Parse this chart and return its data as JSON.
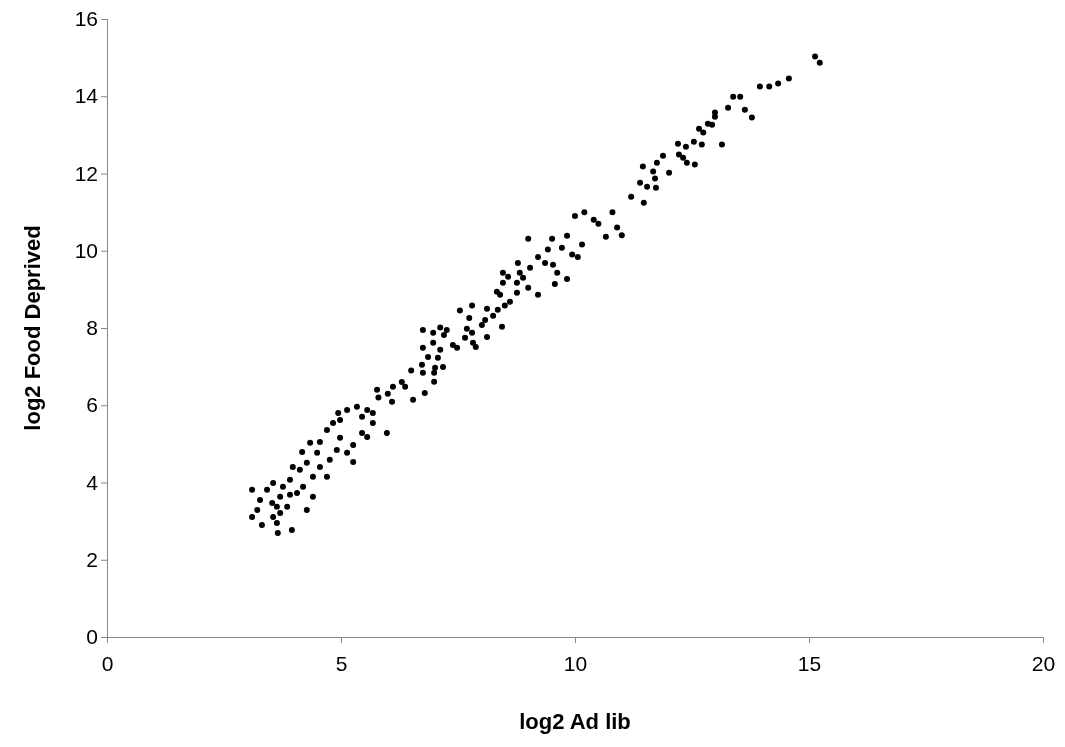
{
  "chart_data": {
    "type": "scatter",
    "xlabel": "log2 Ad lib",
    "ylabel": "log2 Food Deprived",
    "xlim": [
      0,
      20
    ],
    "xticks": [
      0,
      5,
      10,
      15,
      20
    ],
    "ylim": [
      0,
      16
    ],
    "yticks": [
      0,
      2,
      4,
      6,
      8,
      10,
      12,
      14,
      16
    ],
    "grid": false,
    "marker": "circle",
    "x": [
      15.13,
      15.23,
      14.57,
      14.34,
      14.15,
      13.95,
      13.38,
      13.53,
      13.27,
      13.63,
      13.78,
      12.99,
      12.99,
      12.93,
      12.84,
      12.74,
      12.65,
      13.14,
      12.54,
      12.37,
      12.2,
      12.71,
      12.22,
      12.31,
      12.39,
      12.56,
      11.88,
      11.75,
      11.45,
      11.67,
      12.01,
      11.71,
      11.39,
      11.54,
      11.73,
      11.47,
      10.66,
      10.15,
      9.83,
      9.51,
      9.42,
      9.21,
      9.72,
      9.94,
      10.06,
      9.36,
      9.53,
      9.62,
      9.83,
      9.57,
      9.21,
      9.0,
      9.04,
      8.89,
      8.78,
      8.82,
      9.0,
      8.76,
      8.76,
      8.46,
      8.57,
      8.46,
      8.33,
      8.4,
      8.61,
      8.5,
      8.35,
      8.44,
      8.25,
      8.12,
      7.8,
      7.54,
      8.08,
      8.01,
      7.74,
      7.69,
      7.8,
      7.65,
      7.82,
      7.88,
      8.12,
      7.48,
      7.39,
      7.26,
      7.12,
      6.97,
      7.2,
      6.97,
      7.12,
      6.75,
      6.75,
      6.86,
      7.07,
      6.73,
      7.01,
      7.18,
      6.99,
      6.75,
      6.99,
      6.79,
      6.54,
      6.37,
      6.11,
      5.98,
      6.09,
      5.77,
      5.68,
      5.56,
      5.45,
      5.68,
      5.45,
      5.56,
      5.34,
      5.13,
      4.94,
      4.98,
      4.83,
      4.7,
      4.55,
      4.98,
      5.26,
      5.13,
      5.26,
      4.91,
      4.76,
      4.49,
      4.34,
      4.17,
      4.27,
      4.55,
      4.7,
      4.4,
      4.12,
      3.97,
      3.91,
      4.19,
      4.4,
      4.06,
      3.76,
      3.7,
      3.55,
      3.42,
      3.1,
      3.27,
      3.53,
      3.85,
      4.27,
      3.21,
      3.1,
      3.55,
      3.7,
      3.31,
      3.63,
      3.65,
      3.95,
      3.91,
      3.63,
      6.0,
      6.3,
      5.8,
      6.5,
      10.0,
      10.2,
      10.5,
      10.8,
      10.9,
      11.0,
      10.4,
      11.2
    ],
    "series": [
      {
        "color": "#000000",
        "values": [
          15.03,
          14.87,
          14.46,
          14.33,
          14.25,
          14.25,
          13.99,
          13.99,
          13.7,
          13.65,
          13.45,
          13.58,
          13.47,
          13.26,
          13.29,
          13.06,
          13.16,
          12.75,
          12.82,
          12.69,
          12.77,
          12.75,
          12.49,
          12.41,
          12.28,
          12.23,
          12.46,
          12.28,
          12.18,
          12.05,
          12.02,
          11.87,
          11.76,
          11.66,
          11.63,
          11.24,
          10.36,
          10.16,
          10.39,
          10.31,
          10.03,
          9.84,
          10.08,
          9.9,
          9.84,
          9.68,
          9.64,
          9.43,
          9.27,
          9.14,
          8.86,
          10.31,
          9.56,
          9.3,
          9.68,
          9.43,
          9.04,
          9.17,
          8.91,
          9.43,
          9.33,
          9.17,
          8.94,
          8.86,
          8.68,
          8.58,
          8.47,
          8.03,
          8.32,
          8.5,
          8.58,
          8.45,
          8.21,
          8.08,
          8.26,
          7.98,
          7.88,
          7.75,
          7.62,
          7.51,
          7.77,
          7.49,
          7.56,
          7.95,
          8.01,
          7.88,
          7.82,
          7.62,
          7.44,
          7.95,
          7.49,
          7.25,
          7.23,
          7.05,
          6.97,
          6.99,
          6.84,
          6.84,
          6.61,
          6.32,
          6.14,
          6.48,
          6.48,
          5.28,
          6.09,
          6.4,
          5.8,
          5.88,
          5.7,
          5.54,
          5.28,
          5.18,
          5.96,
          5.88,
          5.8,
          5.62,
          5.54,
          5.36,
          5.05,
          5.16,
          4.97,
          4.77,
          4.53,
          4.84,
          4.59,
          4.77,
          5.03,
          4.79,
          4.51,
          4.4,
          4.15,
          4.15,
          4.33,
          4.4,
          4.07,
          3.89,
          3.63,
          3.73,
          3.89,
          3.63,
          3.99,
          3.81,
          3.81,
          3.55,
          3.47,
          3.37,
          3.29,
          3.29,
          3.11,
          3.11,
          3.21,
          2.9,
          2.95,
          2.69,
          2.77,
          3.68,
          3.37,
          6.3,
          6.6,
          6.2,
          6.9,
          10.9,
          11.0,
          10.7,
          11.0,
          10.6,
          10.4,
          10.8,
          11.4
        ]
      }
    ]
  }
}
